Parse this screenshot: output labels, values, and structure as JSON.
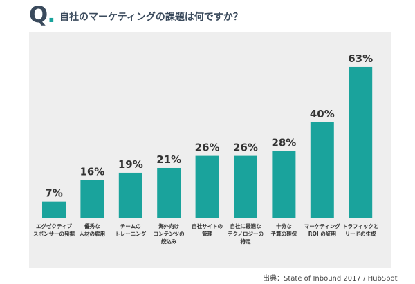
{
  "header": {
    "q_letter": "Q",
    "q_dot": ".",
    "title": "自社のマーケティングの課題は何ですか？"
  },
  "source": "出典：State of Inbound 2017 / HubSpot",
  "colors": {
    "bar": "#1aa39c",
    "panel": "#eeeeee",
    "text": "#333333"
  },
  "chart_data": {
    "type": "bar",
    "unit": "%",
    "categories": [
      [
        "エグゼクティブ",
        "スポンサーの発掘"
      ],
      [
        "優秀な",
        "人材の雇用"
      ],
      [
        "チームの",
        "トレーニング"
      ],
      [
        "海外向け",
        "コンテンツの",
        "絞込み"
      ],
      [
        "自社サイトの",
        "管理"
      ],
      [
        "自社に最適な",
        "テクノロジーの",
        "特定"
      ],
      [
        "十分な",
        "予算の確保"
      ],
      [
        "マーケティング",
        "ROI の証明"
      ],
      [
        "トラフィックと",
        "リードの生成"
      ]
    ],
    "values": [
      7,
      16,
      19,
      21,
      26,
      26,
      28,
      40,
      63
    ],
    "value_labels": [
      "7%",
      "16%",
      "19%",
      "21%",
      "26%",
      "26%",
      "28%",
      "40%",
      "63%"
    ],
    "ylim": [
      0,
      65
    ]
  }
}
